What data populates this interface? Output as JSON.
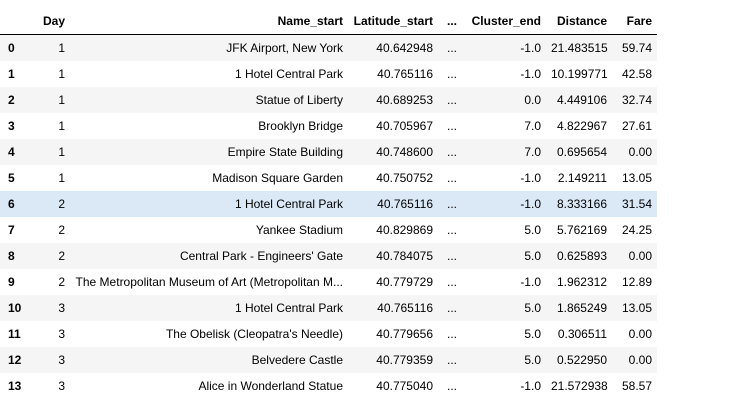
{
  "table": {
    "columns": [
      "",
      "Day",
      "Name_start",
      "Latitude_start",
      "...",
      "Cluster_end",
      "Distance",
      "Fare"
    ],
    "highlight_row_index": "6",
    "rows": [
      {
        "idx": "0",
        "day": "1",
        "name": "JFK Airport, New York",
        "lat": "40.642948",
        "ell": "...",
        "cluster": "-1.0",
        "dist": "21.483515",
        "fare": "59.74"
      },
      {
        "idx": "1",
        "day": "1",
        "name": "1 Hotel Central Park",
        "lat": "40.765116",
        "ell": "...",
        "cluster": "-1.0",
        "dist": "10.199771",
        "fare": "42.58"
      },
      {
        "idx": "2",
        "day": "1",
        "name": "Statue of Liberty",
        "lat": "40.689253",
        "ell": "...",
        "cluster": "0.0",
        "dist": "4.449106",
        "fare": "32.74"
      },
      {
        "idx": "3",
        "day": "1",
        "name": "Brooklyn Bridge",
        "lat": "40.705967",
        "ell": "...",
        "cluster": "7.0",
        "dist": "4.822967",
        "fare": "27.61"
      },
      {
        "idx": "4",
        "day": "1",
        "name": "Empire State Building",
        "lat": "40.748600",
        "ell": "...",
        "cluster": "7.0",
        "dist": "0.695654",
        "fare": "0.00"
      },
      {
        "idx": "5",
        "day": "1",
        "name": "Madison Square Garden",
        "lat": "40.750752",
        "ell": "...",
        "cluster": "-1.0",
        "dist": "2.149211",
        "fare": "13.05"
      },
      {
        "idx": "6",
        "day": "2",
        "name": "1 Hotel Central Park",
        "lat": "40.765116",
        "ell": "...",
        "cluster": "-1.0",
        "dist": "8.333166",
        "fare": "31.54"
      },
      {
        "idx": "7",
        "day": "2",
        "name": "Yankee Stadium",
        "lat": "40.829869",
        "ell": "...",
        "cluster": "5.0",
        "dist": "5.762169",
        "fare": "24.25"
      },
      {
        "idx": "8",
        "day": "2",
        "name": "Central Park - Engineers' Gate",
        "lat": "40.784075",
        "ell": "...",
        "cluster": "5.0",
        "dist": "0.625893",
        "fare": "0.00"
      },
      {
        "idx": "9",
        "day": "2",
        "name": "The Metropolitan Museum of Art (Metropolitan M...",
        "lat": "40.779729",
        "ell": "...",
        "cluster": "-1.0",
        "dist": "1.962312",
        "fare": "12.89"
      },
      {
        "idx": "10",
        "day": "3",
        "name": "1 Hotel Central Park",
        "lat": "40.765116",
        "ell": "...",
        "cluster": "5.0",
        "dist": "1.865249",
        "fare": "13.05"
      },
      {
        "idx": "11",
        "day": "3",
        "name": "The Obelisk (Cleopatra's Needle)",
        "lat": "40.779656",
        "ell": "...",
        "cluster": "5.0",
        "dist": "0.306511",
        "fare": "0.00"
      },
      {
        "idx": "12",
        "day": "3",
        "name": "Belvedere Castle",
        "lat": "40.779359",
        "ell": "...",
        "cluster": "5.0",
        "dist": "0.522950",
        "fare": "0.00"
      },
      {
        "idx": "13",
        "day": "3",
        "name": "Alice in Wonderland Statue",
        "lat": "40.775040",
        "ell": "...",
        "cluster": "-1.0",
        "dist": "21.572938",
        "fare": "58.57"
      }
    ]
  }
}
